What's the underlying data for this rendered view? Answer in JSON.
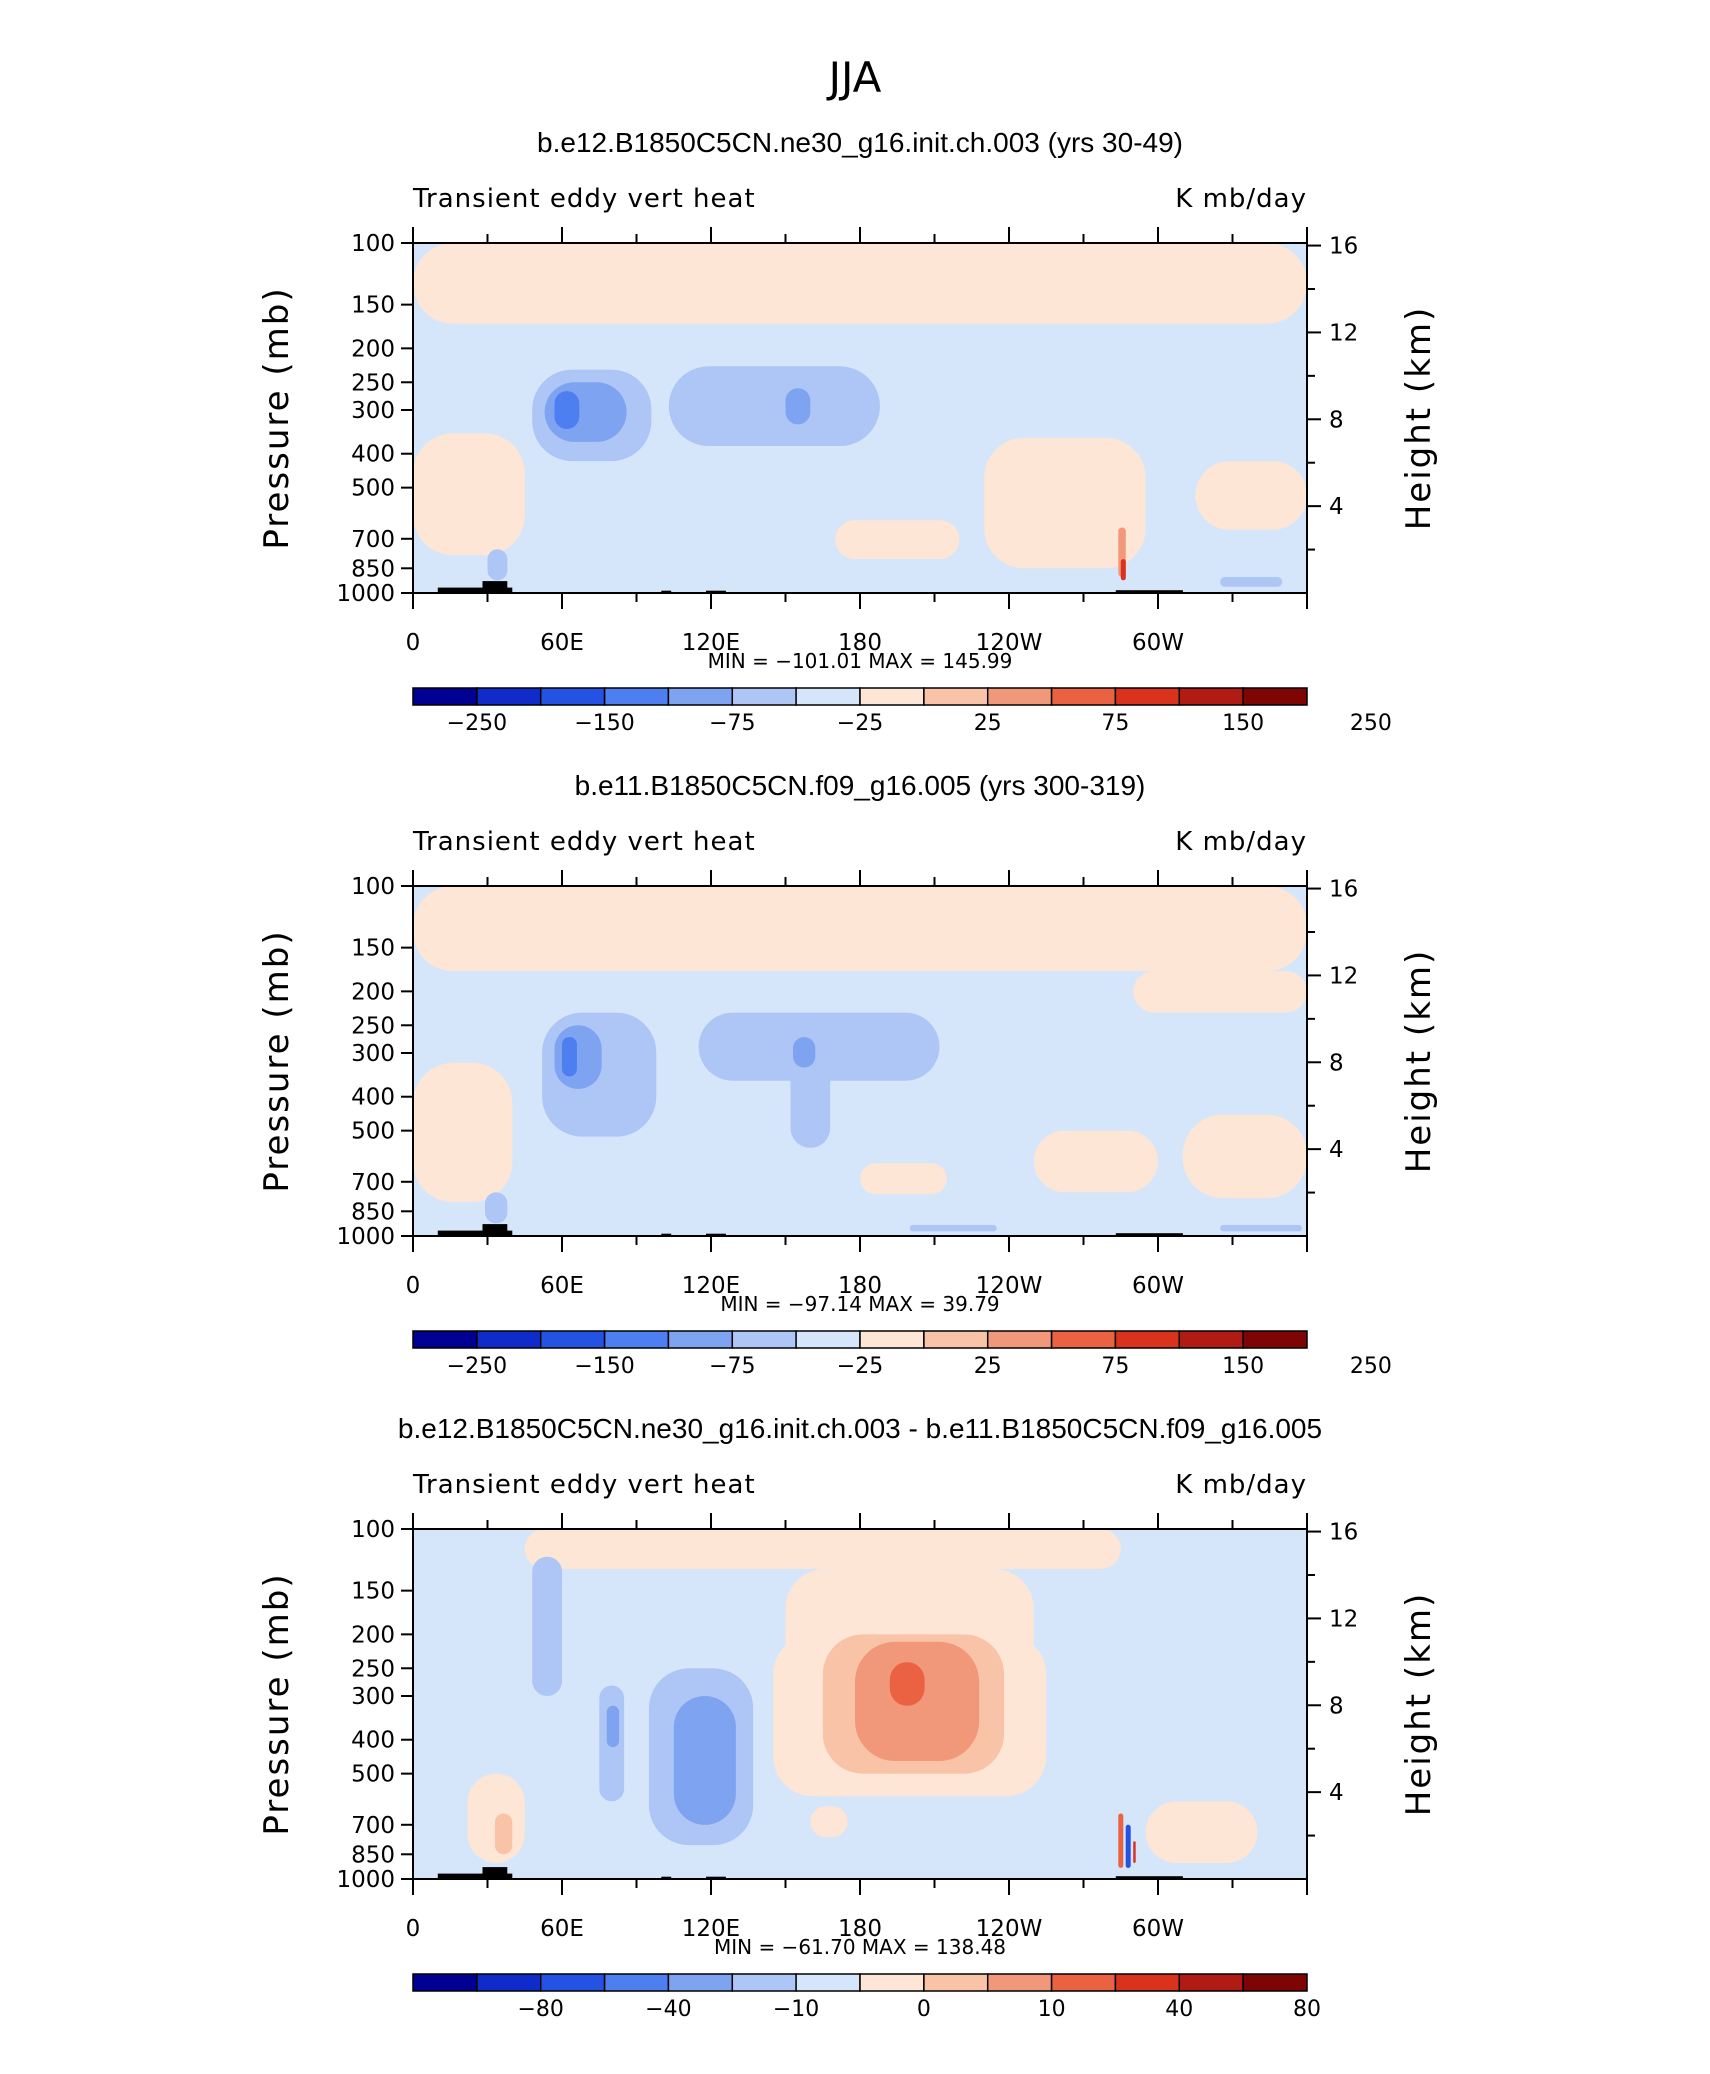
{
  "figure": {
    "season": "JJA"
  },
  "chart_data": [
    {
      "type": "heatmap",
      "title": "b.e12.B1850C5CN.ne30_g16.init.ch.003 (yrs 30-49)",
      "left_string": "Transient eddy vert heat",
      "right_string": "K mb/day",
      "ylabel": "Pressure (mb)",
      "ylabel_right": "Height (km)",
      "x_ticks": [
        "0",
        "60E",
        "120E",
        "180",
        "120W",
        "60W"
      ],
      "y_ticks": [
        "100",
        "150",
        "200",
        "250",
        "300",
        "400",
        "500",
        "700",
        "850",
        "1000"
      ],
      "y_right_ticks": [
        "16",
        "12",
        "8",
        "4"
      ],
      "xlim": [
        0,
        360
      ],
      "ylim": [
        1000,
        100
      ],
      "y_scale": "log",
      "stats_text": "MIN = −101.01   MAX = 145.99",
      "colorbar_labels": [
        "−250",
        "−150",
        "−75",
        "−25",
        "25",
        "75",
        "150",
        "250"
      ],
      "colors": [
        "#000092",
        "#0f2cca",
        "#2452e3",
        "#4d7ff0",
        "#7ea3f1",
        "#aec6f6",
        "#d5e6fb",
        "#fde6d5",
        "#f9c3a8",
        "#f2987a",
        "#ea6242",
        "#d9331d",
        "#b01b14",
        "#7f0404"
      ]
    },
    {
      "type": "heatmap",
      "title": "b.e11.B1850C5CN.f09_g16.005 (yrs 300-319)",
      "left_string": "Transient eddy vert heat",
      "right_string": "K mb/day",
      "ylabel": "Pressure (mb)",
      "ylabel_right": "Height (km)",
      "x_ticks": [
        "0",
        "60E",
        "120E",
        "180",
        "120W",
        "60W"
      ],
      "y_ticks": [
        "100",
        "150",
        "200",
        "250",
        "300",
        "400",
        "500",
        "700",
        "850",
        "1000"
      ],
      "y_right_ticks": [
        "16",
        "12",
        "8",
        "4"
      ],
      "xlim": [
        0,
        360
      ],
      "ylim": [
        1000,
        100
      ],
      "y_scale": "log",
      "stats_text": "MIN = −97.14   MAX =  39.79",
      "colorbar_labels": [
        "−250",
        "−150",
        "−75",
        "−25",
        "25",
        "75",
        "150",
        "250"
      ],
      "colors": [
        "#000092",
        "#0f2cca",
        "#2452e3",
        "#4d7ff0",
        "#7ea3f1",
        "#aec6f6",
        "#d5e6fb",
        "#fde6d5",
        "#f9c3a8",
        "#f2987a",
        "#ea6242",
        "#d9331d",
        "#b01b14",
        "#7f0404"
      ]
    },
    {
      "type": "heatmap",
      "title": "b.e12.B1850C5CN.ne30_g16.init.ch.003 - b.e11.B1850C5CN.f09_g16.005",
      "left_string": "Transient eddy vert heat",
      "right_string": "K mb/day",
      "ylabel": "Pressure (mb)",
      "ylabel_right": "Height (km)",
      "x_ticks": [
        "0",
        "60E",
        "120E",
        "180",
        "120W",
        "60W"
      ],
      "y_ticks": [
        "100",
        "150",
        "200",
        "250",
        "300",
        "400",
        "500",
        "700",
        "850",
        "1000"
      ],
      "y_right_ticks": [
        "16",
        "12",
        "8",
        "4"
      ],
      "xlim": [
        0,
        360
      ],
      "ylim": [
        1000,
        100
      ],
      "y_scale": "log",
      "stats_text": "MIN = −61.70   MAX = 138.48",
      "colorbar_labels": [
        "−80",
        "−40",
        "−10",
        "0",
        "10",
        "40",
        "80"
      ],
      "colors": [
        "#000092",
        "#0f2cca",
        "#2452e3",
        "#4d7ff0",
        "#7ea3f1",
        "#aec6f6",
        "#d5e6fb",
        "#fde6d5",
        "#f9c3a8",
        "#f2987a",
        "#ea6242",
        "#d9331d",
        "#b01b14",
        "#7f0404"
      ]
    }
  ]
}
